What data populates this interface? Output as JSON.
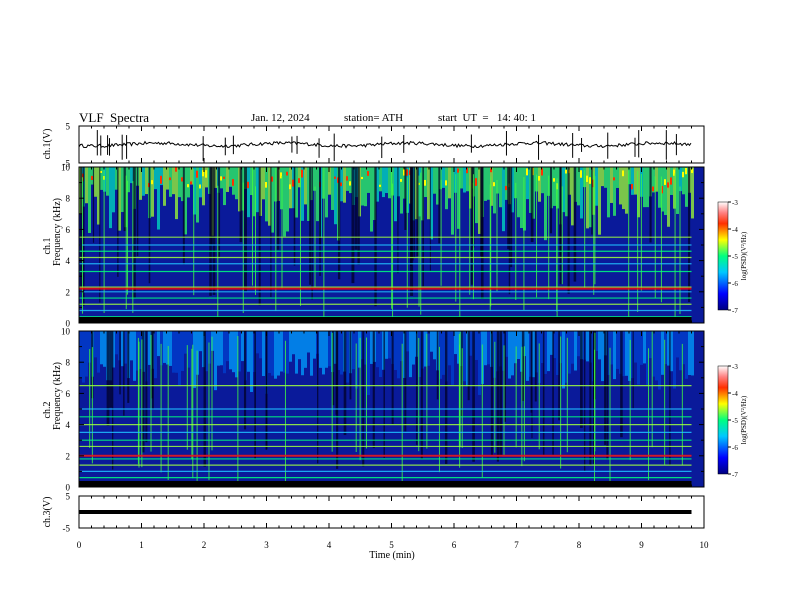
{
  "header": {
    "title": "VLF  Spectra",
    "date": "Jan. 12, 2024",
    "station": "station= ATH",
    "start": "start  UT  =   14: 40: 1"
  },
  "colors": {
    "accent": "#ff0000",
    "spectrogram_low": "#00007f",
    "spectrogram_high": "#ff0000",
    "trace": "#000000"
  },
  "chart_data": [
    {
      "type": "line",
      "panel": "ch1-timeseries",
      "title": "",
      "xlabel": "",
      "ylabel": "ch.1(V)",
      "xlim": [
        0,
        10
      ],
      "ylim": [
        -5,
        5
      ],
      "yticks": [
        5,
        -5
      ],
      "grid": false,
      "series": [
        {
          "x": [
            0,
            1,
            2,
            3,
            4,
            5,
            6,
            7,
            8,
            9,
            9.8
          ],
          "values": [
            0.2,
            0.1,
            0.3,
            0.0,
            0.2,
            0.4,
            0.1,
            0.0,
            0.2,
            0.1,
            0.3
          ]
        }
      ]
    },
    {
      "type": "heatmap",
      "panel": "ch1-spectrogram",
      "title": "",
      "xlabel": "",
      "ylabel": "ch.1\nFrequency (kHz)",
      "xlim": [
        0,
        10
      ],
      "ylim": [
        0,
        10
      ],
      "yticks": [
        0,
        2,
        4,
        6,
        8,
        10
      ],
      "colorbar": {
        "label": "log(PSD)(V²/Hz)",
        "range": [
          -7,
          -3
        ],
        "ticks": [
          "-3",
          "-4",
          "-5",
          "-6",
          "-7"
        ]
      },
      "bands_khz": [
        0.4,
        0.8,
        1.2,
        1.6,
        2.0,
        2.3,
        3.3,
        3.8,
        4.2,
        4.6,
        5.0,
        5.5
      ]
    },
    {
      "type": "heatmap",
      "panel": "ch2-spectrogram",
      "title": "",
      "xlabel": "",
      "ylabel": "ch.2\nFrequency (kHz)",
      "xlim": [
        0,
        10
      ],
      "ylim": [
        0,
        10
      ],
      "yticks": [
        0,
        2,
        4,
        6,
        8,
        10
      ],
      "colorbar": {
        "label": "log(PSD)(V²/Hz)",
        "range": [
          -7,
          -3
        ],
        "ticks": [
          "-3",
          "-4",
          "-5",
          "-6",
          "-7"
        ]
      },
      "bands_khz": [
        0.6,
        1.0,
        1.4,
        1.8,
        2.0,
        2.6,
        3.0,
        3.5,
        4.0,
        4.5,
        5.0,
        6.5
      ]
    },
    {
      "type": "line",
      "panel": "ch3-timeseries",
      "title": "",
      "xlabel": "Time  (min)",
      "ylabel": "ch.3(V)",
      "xlim": [
        0,
        10
      ],
      "ylim": [
        -5,
        5
      ],
      "yticks": [
        5,
        -5
      ],
      "xticks": [
        0,
        1,
        2,
        3,
        4,
        5,
        6,
        7,
        8,
        9,
        10
      ],
      "grid": false,
      "series": [
        {
          "x": [
            0,
            9.8
          ],
          "values": [
            0.0,
            0.0
          ]
        }
      ]
    }
  ]
}
